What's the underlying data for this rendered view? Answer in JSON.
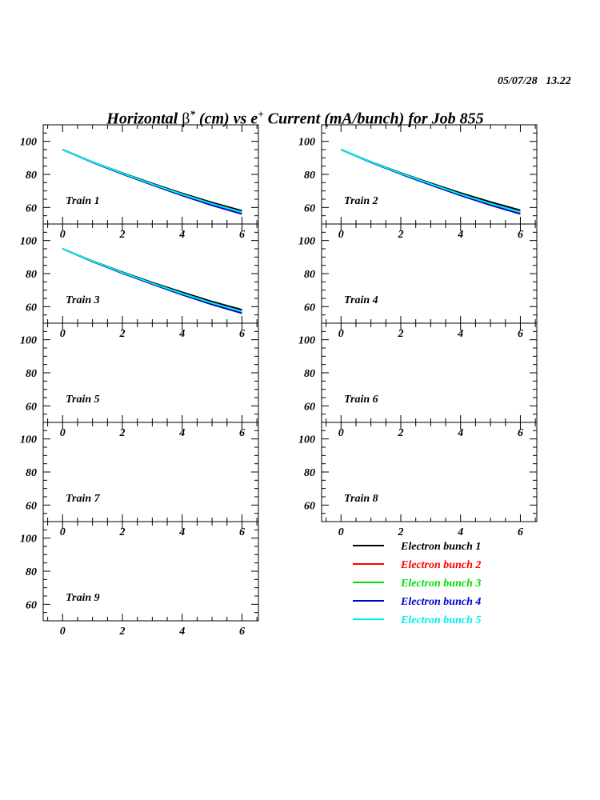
{
  "header": {
    "timestamp": "05/07/28   13.22",
    "title_parts": [
      "Horizontal ",
      "β",
      "*",
      " (cm) vs e",
      "+",
      " Current (mA/bunch) for Job 855"
    ]
  },
  "chart_data": {
    "type": "line",
    "title": "Horizontal β* (cm) vs e+ Current (mA/bunch) for Job 855",
    "xlabel": "e+ Current (mA/bunch)",
    "ylabel": "Horizontal β* (cm)",
    "xlim": [
      -0.65,
      6.55
    ],
    "ylim": [
      50,
      110
    ],
    "xticks": [
      0,
      2,
      4,
      6
    ],
    "yticks": [
      60,
      80,
      100
    ],
    "grid": false,
    "legend_placement": "bottom-right",
    "x": [
      0,
      1,
      2,
      3,
      4,
      5,
      6
    ],
    "legend": [
      {
        "name": "Electron bunch 1",
        "color": "#000000"
      },
      {
        "name": "Electron bunch 2",
        "color": "#ff0000"
      },
      {
        "name": "Electron bunch 3",
        "color": "#00dd00"
      },
      {
        "name": "Electron bunch 4",
        "color": "#0000cc"
      },
      {
        "name": "Electron bunch 5",
        "color": "#00eeee"
      }
    ],
    "panels": [
      {
        "label": "Train 1",
        "series": [
          [
            95,
            87.5,
            80.8,
            74.5,
            68.5,
            63.0,
            58.0
          ],
          [
            95,
            87.5,
            80.6,
            74.1,
            67.9,
            62.2,
            57.1
          ],
          [
            95,
            87.5,
            80.6,
            74.1,
            67.9,
            62.2,
            57.1
          ],
          [
            95,
            87.3,
            80.2,
            73.6,
            67.2,
            61.3,
            56.0
          ],
          [
            95,
            87.5,
            80.6,
            74.1,
            67.9,
            62.2,
            57.1
          ]
        ]
      },
      {
        "label": "Train 2",
        "series": [
          [
            95,
            87.6,
            80.9,
            74.7,
            68.8,
            63.3,
            58.3
          ],
          [
            95,
            87.5,
            80.6,
            74.2,
            68.0,
            62.3,
            57.2
          ],
          [
            95,
            87.5,
            80.6,
            74.2,
            68.0,
            62.3,
            57.2
          ],
          [
            95,
            87.3,
            80.2,
            73.6,
            67.3,
            61.4,
            56.1
          ],
          [
            95,
            87.5,
            80.6,
            74.2,
            68.0,
            62.3,
            57.2
          ]
        ]
      },
      {
        "label": "Train 3",
        "series": [
          [
            95,
            87.6,
            80.9,
            74.6,
            68.7,
            63.1,
            58.1
          ],
          [
            95,
            87.5,
            80.6,
            74.1,
            67.9,
            62.2,
            57.1
          ],
          [
            95,
            87.5,
            80.6,
            74.1,
            67.9,
            62.2,
            57.1
          ],
          [
            95,
            87.3,
            80.2,
            73.6,
            67.2,
            61.3,
            56.0
          ],
          [
            95,
            87.5,
            80.6,
            74.1,
            67.9,
            62.2,
            57.1
          ]
        ]
      },
      {
        "label": "Train 4",
        "series": []
      },
      {
        "label": "Train 5",
        "series": []
      },
      {
        "label": "Train 6",
        "series": []
      },
      {
        "label": "Train 7",
        "series": []
      },
      {
        "label": "Train 8",
        "series": []
      },
      {
        "label": "Train 9",
        "series": []
      }
    ]
  }
}
